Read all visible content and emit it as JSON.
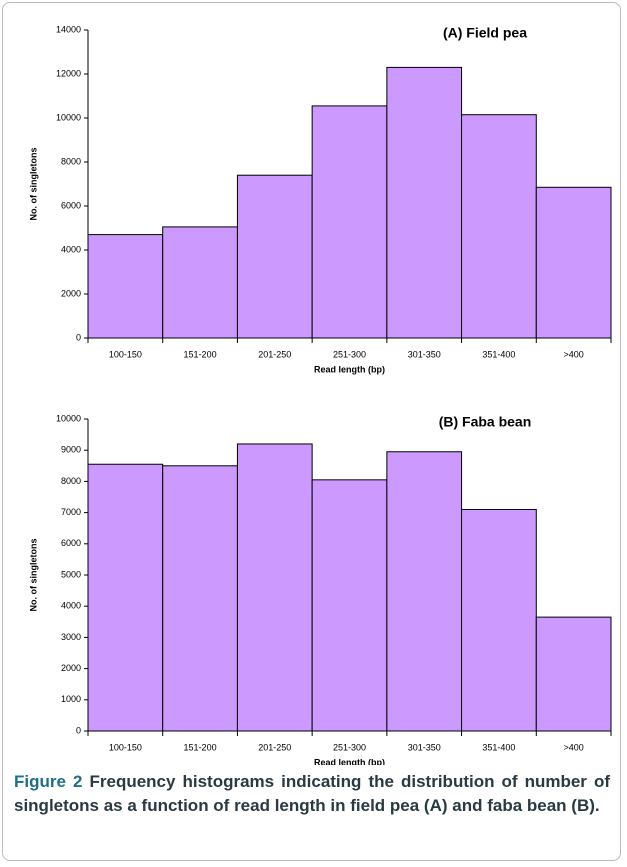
{
  "chart_data": [
    {
      "type": "bar",
      "title": "(A) Field pea",
      "x_label": "Read length (bp)",
      "y_label": "No. of singletons",
      "categories": [
        "100-150",
        "151-200",
        "201-250",
        "251-300",
        "301-350",
        "351-400",
        ">400"
      ],
      "values": [
        4700,
        5050,
        7400,
        10550,
        12300,
        10150,
        6850
      ],
      "color": "#cc99ff",
      "ylim": [
        0,
        14000
      ],
      "yticks": [
        0,
        2000,
        4000,
        6000,
        8000,
        10000,
        12000,
        14000
      ]
    },
    {
      "type": "bar",
      "title": "(B) Faba bean",
      "x_label": "Read length (bp)",
      "y_label": "No. of singletons",
      "categories": [
        "100-150",
        "151-200",
        "201-250",
        "251-300",
        "301-350",
        "351-400",
        ">400"
      ],
      "values": [
        8550,
        8500,
        9200,
        8050,
        8950,
        7100,
        3650
      ],
      "color": "#cc99ff",
      "ylim": [
        0,
        10000
      ],
      "yticks": [
        0,
        1000,
        2000,
        3000,
        4000,
        5000,
        6000,
        7000,
        8000,
        9000,
        10000
      ]
    }
  ],
  "caption": {
    "label": "Figure 2",
    "text": "Frequency histograms indicating the distribution of number of singletons as a function of read length in field pea (A) and faba bean (B)."
  }
}
